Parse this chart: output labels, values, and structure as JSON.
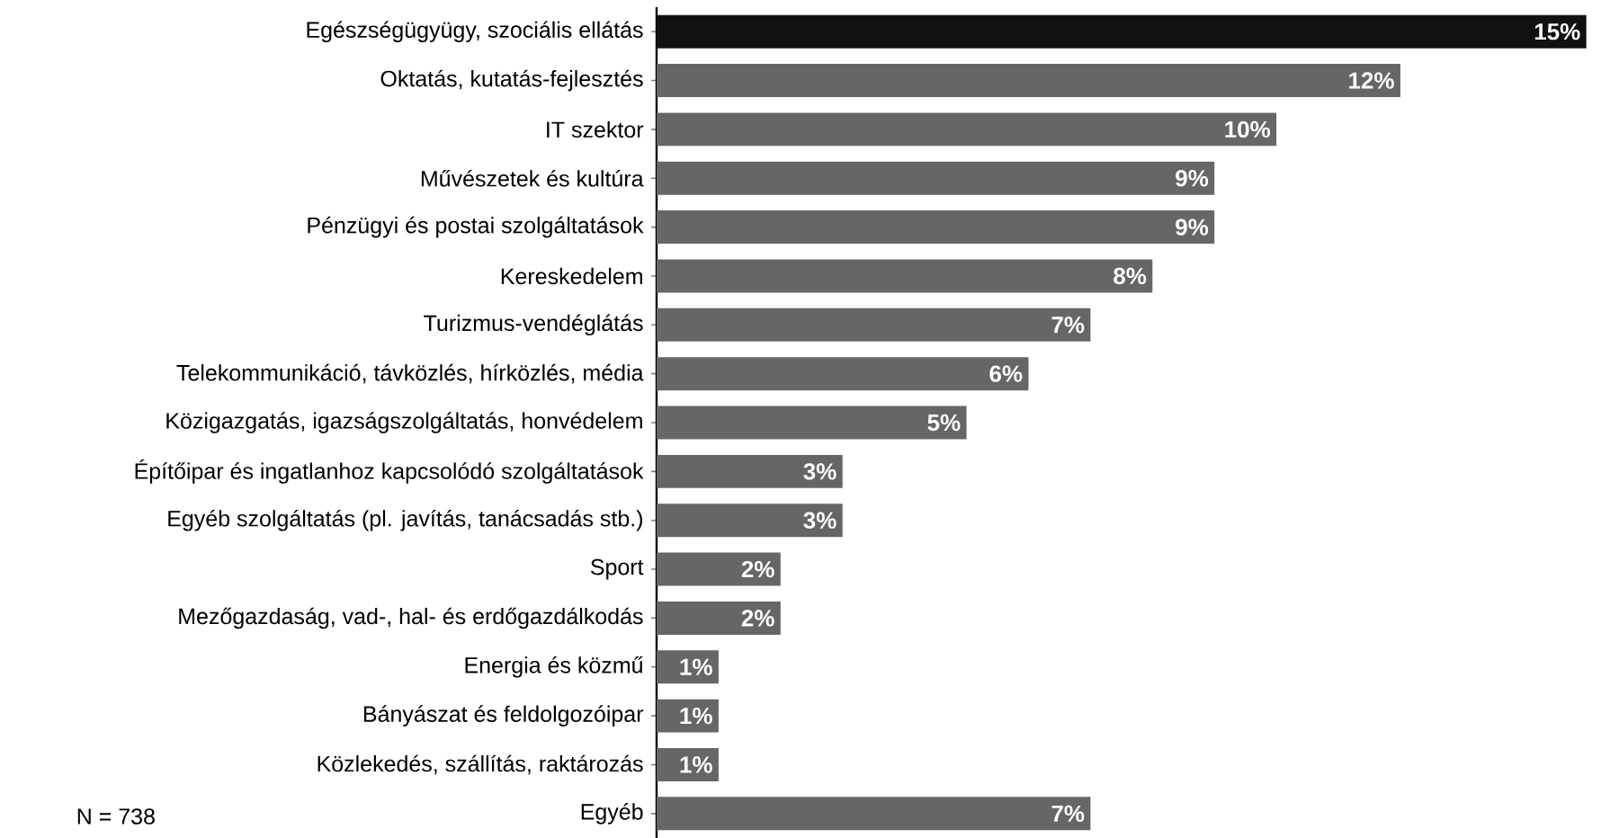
{
  "chart_data": {
    "type": "bar",
    "orientation": "horizontal",
    "categories": [
      "Egészségügyügy, szociális ellátás",
      "Oktatás, kutatás-fejlesztés",
      "IT szektor",
      "Művészetek és kultúra",
      "Pénzügyi és postai szolgáltatások",
      "Kereskedelem",
      "Turizmus-vendéglátás",
      "Telekommunikáció, távközlés, hírközlés, média",
      "Közigazgatás, igazságszolgáltatás, honvédelem",
      "Építőipar és ingatlanhoz kapcsolódó szolgáltatások",
      "Egyéb szolgáltatás (pl. javítás, tanácsadás stb.)",
      "Sport",
      "Mezőgazdaság, vad-, hal- és erdőgazdálkodás",
      "Energia és közmű",
      "Bányászat és feldolgozóipar",
      "Közlekedés, szállítás, raktározás",
      "Egyéb"
    ],
    "values": [
      15,
      12,
      10,
      9,
      9,
      8,
      7,
      6,
      5,
      3,
      3,
      2,
      2,
      1,
      1,
      1,
      7
    ],
    "value_labels": [
      "15%",
      "12%",
      "10%",
      "9%",
      "9%",
      "8%",
      "7%",
      "6%",
      "5%",
      "3%",
      "3%",
      "2%",
      "2%",
      "1%",
      "1%",
      "1%",
      "7%"
    ],
    "colors": [
      "#111111",
      "#666666",
      "#666666",
      "#666666",
      "#666666",
      "#666666",
      "#666666",
      "#666666",
      "#666666",
      "#666666",
      "#666666",
      "#666666",
      "#666666",
      "#666666",
      "#666666",
      "#666666",
      "#666666"
    ],
    "annotations": [
      "N = 738"
    ]
  }
}
